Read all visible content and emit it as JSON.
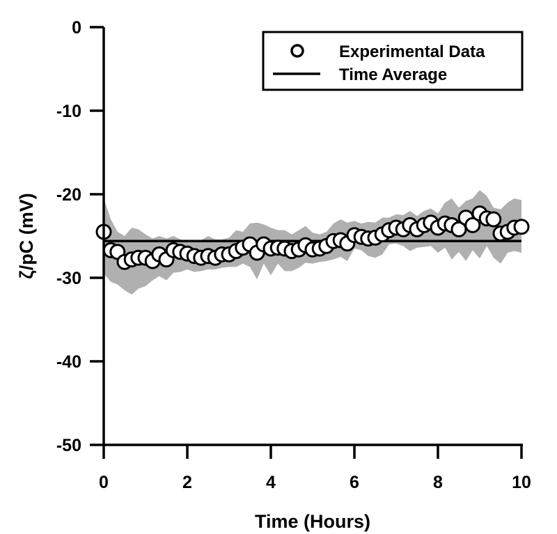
{
  "chart_data": {
    "type": "scatter",
    "title": "",
    "xlabel": "Time (Hours)",
    "ylabel": "ζ/pC (mV)",
    "xlim": [
      0,
      10
    ],
    "ylim": [
      -50,
      0
    ],
    "xticks": [
      0,
      2,
      4,
      6,
      8,
      10
    ],
    "yticks": [
      0,
      -10,
      -20,
      -30,
      -40,
      -50
    ],
    "grid": false,
    "legend": {
      "placement": "top-right",
      "entries": [
        "Experimental Data",
        "Time Average"
      ]
    },
    "colors": {
      "band": "#b0b0b0",
      "marker_fill": "#ffffff",
      "marker_stroke": "#000000",
      "line": "#000000"
    },
    "time_average": -25.6,
    "series": [
      {
        "name": "Experimental Data",
        "x": [
          0,
          0.17,
          0.33,
          0.5,
          0.67,
          0.83,
          1.0,
          1.17,
          1.33,
          1.5,
          1.67,
          1.83,
          2.0,
          2.17,
          2.33,
          2.5,
          2.67,
          2.83,
          3.0,
          3.17,
          3.33,
          3.5,
          3.67,
          3.83,
          4.0,
          4.17,
          4.33,
          4.5,
          4.67,
          4.83,
          5.0,
          5.17,
          5.33,
          5.5,
          5.67,
          5.83,
          6.0,
          6.17,
          6.33,
          6.5,
          6.67,
          6.83,
          7.0,
          7.17,
          7.33,
          7.5,
          7.67,
          7.83,
          8.0,
          8.17,
          8.33,
          8.5,
          8.67,
          8.83,
          9.0,
          9.17,
          9.33,
          9.5,
          9.67,
          9.83,
          10.0
        ],
        "y": [
          -24.5,
          -26.7,
          -26.9,
          -28.1,
          -27.8,
          -27.6,
          -27.6,
          -28.0,
          -27.2,
          -27.8,
          -26.7,
          -26.9,
          -27.1,
          -27.4,
          -27.6,
          -27.4,
          -27.6,
          -27.2,
          -27.2,
          -26.8,
          -26.4,
          -26.0,
          -27.0,
          -26.0,
          -26.5,
          -26.4,
          -26.5,
          -26.8,
          -26.6,
          -26.1,
          -26.6,
          -26.5,
          -26.2,
          -25.6,
          -25.5,
          -25.9,
          -24.9,
          -25.1,
          -25.3,
          -25.2,
          -24.8,
          -24.3,
          -24.0,
          -24.2,
          -23.7,
          -24.2,
          -23.7,
          -23.4,
          -24.0,
          -23.5,
          -23.7,
          -24.2,
          -22.8,
          -23.7,
          -22.3,
          -22.9,
          -23.0,
          -24.7,
          -24.5,
          -24.0,
          -23.9
        ],
        "band_upper": [
          -20.5,
          -23.0,
          -24.5,
          -25.0,
          -24.0,
          -24.2,
          -24.8,
          -25.3,
          -25.0,
          -25.3,
          -25.0,
          -25.4,
          -25.6,
          -25.7,
          -25.5,
          -25.0,
          -25.4,
          -25.4,
          -25.2,
          -24.3,
          -24.5,
          -23.5,
          -23.4,
          -23.6,
          -24.0,
          -24.3,
          -24.3,
          -24.8,
          -24.3,
          -23.8,
          -24.6,
          -24.8,
          -24.5,
          -23.5,
          -23.0,
          -23.4,
          -23.2,
          -23.5,
          -23.3,
          -23.4,
          -22.8,
          -22.8,
          -22.4,
          -22.5,
          -22.0,
          -22.6,
          -22.0,
          -21.7,
          -22.3,
          -21.0,
          -20.5,
          -21.6,
          -20.8,
          -20.5,
          -19.5,
          -20.2,
          -21.6,
          -21.8,
          -21.0,
          -20.5,
          -20.7
        ],
        "band_lower": [
          -29.5,
          -30.5,
          -30.8,
          -31.5,
          -32.0,
          -31.3,
          -31.0,
          -30.3,
          -29.8,
          -30.3,
          -29.4,
          -29.3,
          -29.0,
          -29.3,
          -29.2,
          -29.0,
          -29.0,
          -28.8,
          -28.7,
          -28.7,
          -28.3,
          -28.7,
          -30.2,
          -28.3,
          -29.7,
          -28.3,
          -29.2,
          -29.2,
          -28.8,
          -28.2,
          -28.3,
          -28.1,
          -28.0,
          -27.8,
          -27.5,
          -28.0,
          -26.5,
          -26.7,
          -27.4,
          -27.6,
          -27.2,
          -26.0,
          -25.9,
          -26.2,
          -26.8,
          -26.4,
          -26.3,
          -26.2,
          -27.0,
          -26.4,
          -27.8,
          -26.9,
          -28.0,
          -26.7,
          -27.7,
          -26.2,
          -27.6,
          -28.3,
          -27.0,
          -26.8,
          -27.0
        ]
      },
      {
        "name": "Time Average",
        "x": [
          0,
          10
        ],
        "y": [
          -25.6,
          -25.6
        ]
      }
    ]
  }
}
